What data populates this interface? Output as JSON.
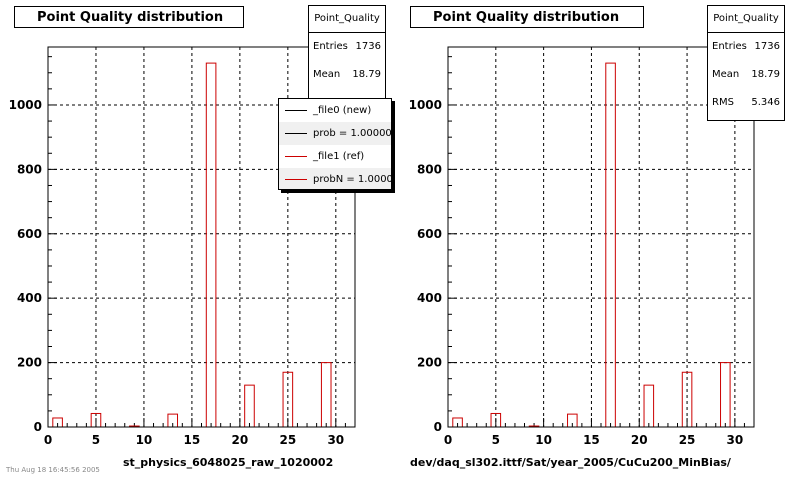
{
  "footnote": "Thu Aug 18 16:45:56 2005",
  "chart_data": [
    {
      "type": "bar",
      "title": "Point Quality distribution",
      "xlabel": "st_physics_6048025_raw_1020002",
      "ylabel": "",
      "xlim": [
        0,
        32
      ],
      "ylim": [
        0,
        1180
      ],
      "xticks": [
        0,
        5,
        10,
        15,
        20,
        25,
        30
      ],
      "yticks": [
        0,
        200,
        400,
        600,
        800,
        1000
      ],
      "grid": true,
      "bin_width": 1,
      "bar_color": "#cc0000",
      "x": [
        1,
        5,
        9,
        13,
        17,
        21,
        25,
        29
      ],
      "values": [
        28,
        42,
        3,
        40,
        1130,
        130,
        170,
        200
      ],
      "stats": {
        "title": "Point_Quality",
        "rows": [
          {
            "k": "Entries",
            "v": "1736"
          },
          {
            "k": "Mean",
            "v": "18.79"
          }
        ]
      },
      "legend": {
        "placement": "top-right",
        "entries": [
          {
            "label": "_file0 (new)",
            "color": "#000000"
          },
          {
            "label": "prob = 1.000000",
            "color": "#000000"
          },
          {
            "label": "_file1 (ref)",
            "color": "#cc0000"
          },
          {
            "label": "probN = 1.000000",
            "color": "#cc0000"
          }
        ]
      }
    },
    {
      "type": "bar",
      "title": "Point Quality distribution",
      "xlabel": "dev/daq_sl302.ittf/Sat/year_2005/CuCu200_MinBias/",
      "ylabel": "",
      "xlim": [
        0,
        32
      ],
      "ylim": [
        0,
        1180
      ],
      "xticks": [
        0,
        5,
        10,
        15,
        20,
        25,
        30
      ],
      "yticks": [
        0,
        200,
        400,
        600,
        800,
        1000
      ],
      "grid": true,
      "bin_width": 1,
      "bar_color": "#cc0000",
      "x": [
        1,
        5,
        9,
        13,
        17,
        21,
        25,
        29
      ],
      "values": [
        28,
        42,
        3,
        40,
        1130,
        130,
        170,
        200
      ],
      "stats": {
        "title": "Point_Quality",
        "rows": [
          {
            "k": "Entries",
            "v": "1736"
          },
          {
            "k": "Mean",
            "v": "18.79"
          },
          {
            "k": "RMS",
            "v": "5.346"
          }
        ]
      }
    }
  ]
}
